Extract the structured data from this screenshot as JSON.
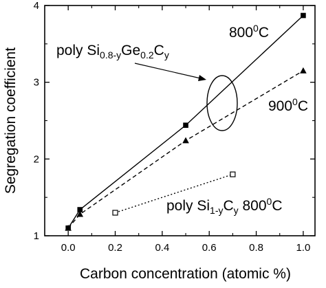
{
  "chart_data": {
    "type": "line",
    "xlabel": "Carbon concentration (atomic %)",
    "ylabel": "Segregation coefficient",
    "xlim": [
      -0.1,
      1.05
    ],
    "ylim": [
      1,
      4
    ],
    "x_ticks": [
      "0.0",
      "0.2",
      "0.4",
      "0.6",
      "0.8",
      "1.0"
    ],
    "y_ticks": [
      "1",
      "2",
      "3",
      "4"
    ],
    "series": [
      {
        "label_parts": [
          "800",
          "0",
          "C"
        ],
        "marker": "filled-square",
        "line": "solid",
        "x": [
          0.0,
          0.05,
          0.5,
          1.0
        ],
        "y": [
          1.1,
          1.34,
          2.44,
          3.87
        ]
      },
      {
        "label_parts": [
          "900",
          "0",
          "C"
        ],
        "marker": "filled-triangle",
        "line": "dashed",
        "x": [
          0.0,
          0.05,
          0.5,
          1.0
        ],
        "y": [
          1.1,
          1.28,
          2.24,
          3.15
        ]
      },
      {
        "label_parts": [
          "poly Si",
          "1-y",
          "C",
          "y",
          " 800",
          "0",
          "C"
        ],
        "marker": "open-square",
        "line": "dotted",
        "x": [
          0.2,
          0.7
        ],
        "y": [
          1.3,
          1.8
        ]
      }
    ],
    "annotation": {
      "text_parts": [
        "poly Si",
        "0.8-y",
        "Ge",
        "0.2",
        "C",
        "y"
      ]
    }
  }
}
